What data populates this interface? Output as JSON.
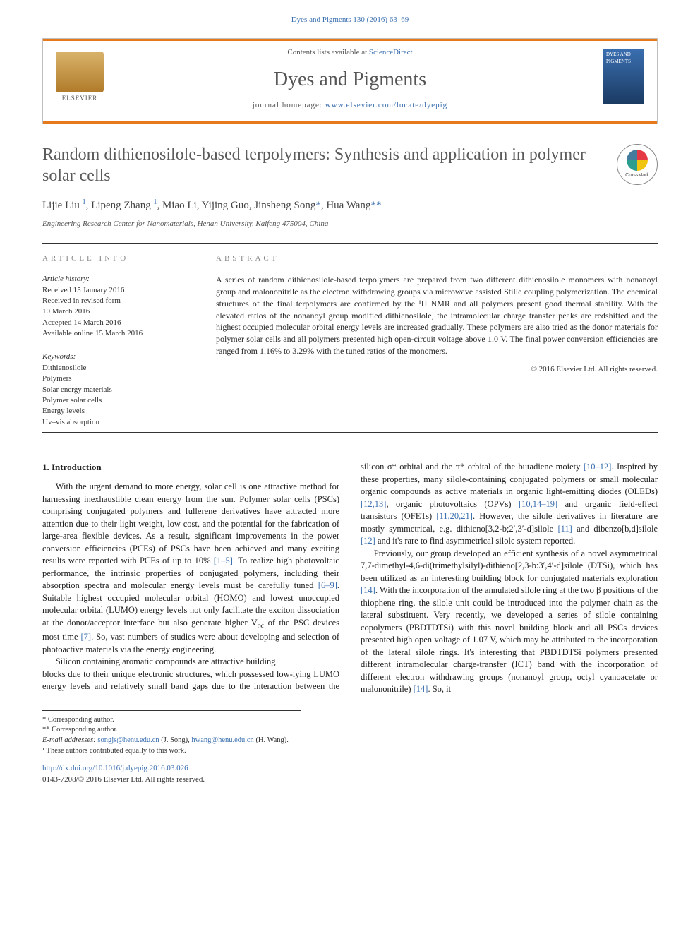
{
  "header": {
    "citation": "Dyes and Pigments 130 (2016) 63–69",
    "contents_line_prefix": "Contents lists available at ",
    "contents_link": "ScienceDirect",
    "journal_name": "Dyes and Pigments",
    "homepage_prefix": "journal homepage: ",
    "homepage_url": "www.elsevier.com/locate/dyepig",
    "publisher_logo_text": "ELSEVIER",
    "cover_text": "DYES AND PIGMENTS"
  },
  "article": {
    "title": "Random dithienosilole-based terpolymers: Synthesis and application in polymer solar cells",
    "crossmark_label": "CrossMark",
    "authors_html": "Lijie Liu <sup>1</sup>, Lipeng Zhang <sup>1</sup>, Miao Li, Yijing Guo, Jinsheng Song<span class='corr'>*</span>, Hua Wang<span class='corr'>**</span>",
    "affiliation": "Engineering Research Center for Nanomaterials, Henan University, Kaifeng 475004, China"
  },
  "info": {
    "article_info_head": "ARTICLE INFO",
    "abstract_head": "ABSTRACT",
    "history_label": "Article history:",
    "history": [
      "Received 15 January 2016",
      "Received in revised form",
      "10 March 2016",
      "Accepted 14 March 2016",
      "Available online 15 March 2016"
    ],
    "keywords_label": "Keywords:",
    "keywords": [
      "Dithienosilole",
      "Polymers",
      "Solar energy materials",
      "Polymer solar cells",
      "Energy levels",
      "Uv–vis absorption"
    ],
    "abstract": "A series of random dithienosilole-based terpolymers are prepared from two different dithienosilole monomers with nonanoyl group and malononitrile as the electron withdrawing groups via microwave assisted Stille coupling polymerization. The chemical structures of the final terpolymers are confirmed by the ¹H NMR and all polymers present good thermal stability. With the elevated ratios of the nonanoyl group modified dithienosilole, the intramolecular charge transfer peaks are redshifted and the highest occupied molecular orbital energy levels are increased gradually. These polymers are also tried as the donor materials for polymer solar cells and all polymers presented high open-circuit voltage above 1.0 V. The final power conversion efficiencies are ranged from 1.16% to 3.29% with the tuned ratios of the monomers.",
    "copyright": "© 2016 Elsevier Ltd. All rights reserved."
  },
  "body": {
    "section_heading": "1. Introduction",
    "p1": "With the urgent demand to more energy, solar cell is one attractive method for harnessing inexhaustible clean energy from the sun. Polymer solar cells (PSCs) comprising conjugated polymers and fullerene derivatives have attracted more attention due to their light weight, low cost, and the potential for the fabrication of large-area flexible devices. As a result, significant improvements in the power conversion efficiencies (PCEs) of PSCs have been achieved and many exciting results were reported with PCEs of up to 10% ",
    "p1_ref1": "[1–5]",
    "p1b": ". To realize high photovoltaic performance, the intrinsic properties of conjugated polymers, including their absorption spectra and molecular energy levels must be carefully tuned ",
    "p1_ref2": "[6–9]",
    "p1c": ". Suitable highest occupied molecular orbital (HOMO) and lowest unoccupied molecular orbital (LUMO) energy levels not only facilitate the exciton dissociation at the donor/acceptor interface but also generate higher V",
    "p1_oc": "oc",
    "p1d": " of the PSC devices most time ",
    "p1_ref3": "[7]",
    "p1e": ". So, vast numbers of studies were about developing and selection of photoactive materials via the energy engineering.",
    "p2a": "Silicon containing aromatic compounds are attractive building",
    "p2b": "blocks due to their unique electronic structures, which possessed low-lying LUMO energy levels and relatively small band gaps due to the interaction between the silicon σ* orbital and the π* orbital of the butadiene moiety ",
    "p2_ref1": "[10–12]",
    "p2c": ". Inspired by these properties, many silole-containing conjugated polymers or small molecular organic compounds as active materials in organic light-emitting diodes (OLEDs) ",
    "p2_ref2": "[12,13]",
    "p2d": ", organic photovoltaics (OPVs) ",
    "p2_ref3": "[10,14–19]",
    "p2e": " and organic field-effect transistors (OFETs) ",
    "p2_ref4": "[11,20,21]",
    "p2f": ". However, the silole derivatives in literature are mostly symmetrical, e.g. dithieno[3,2-b;2′,3′-d]silole ",
    "p2_ref5": "[11]",
    "p2g": " and dibenzo[b,d]silole ",
    "p2_ref6": "[12]",
    "p2h": " and it's rare to find asymmetrical silole system reported.",
    "p3a": "Previously, our group developed an efficient synthesis of a novel asymmetrical 7,7-dimethyl-4,6-di(trimethylsilyl)-dithieno[2,3-b:3′,4′-d]silole (DTSi), which has been utilized as an interesting building block for conjugated materials exploration ",
    "p3_ref1": "[14]",
    "p3b": ". With the incorporation of the annulated silole ring at the two β positions of the thiophene ring, the silole unit could be introduced into the polymer chain as the lateral substituent. Very recently, we developed a series of silole containing copolymers (PBDTDTSi) with this novel building block and all PSCs devices presented high open voltage of 1.07 V, which may be attributed to the incorporation of the lateral silole rings. It's interesting that PBDTDTSi polymers presented different intramolecular charge-transfer (ICT) band with the incorporation of different electron withdrawing groups (nonanoyl group, octyl cyanoacetate or malononitrile) ",
    "p3_ref2": "[14]",
    "p3c": ". So, it"
  },
  "footnotes": {
    "corr1": "* Corresponding author.",
    "corr2": "** Corresponding author.",
    "email_label": "E-mail addresses: ",
    "email1": "songjs@henu.edu.cn",
    "email1_name": " (J. Song), ",
    "email2": "hwang@henu.edu.cn",
    "email2_name": " (H. Wang).",
    "note1": "¹ These authors contributed equally to this work."
  },
  "doi": {
    "url": "http://dx.doi.org/10.1016/j.dyepig.2016.03.026",
    "issn_line": "0143-7208/© 2016 Elsevier Ltd. All rights reserved."
  },
  "colors": {
    "accent_orange": "#e67a1a",
    "link_blue": "#3a6fb0",
    "heading_gray": "#5a5a5a",
    "text": "#333333"
  },
  "typography": {
    "title_fontsize": 24,
    "journal_fontsize": 28,
    "body_fontsize": 12.5,
    "abstract_fontsize": 12,
    "small_fontsize": 11
  }
}
